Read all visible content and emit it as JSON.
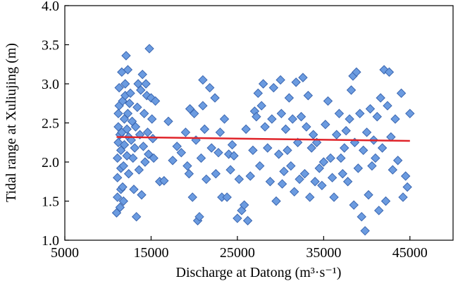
{
  "chart_data": {
    "type": "scatter",
    "title": "",
    "xlabel": "Discharge at Datong (m³·s⁻¹)",
    "ylabel": "Tidal range at Xuliujing (m)",
    "xlim": [
      5000,
      50000
    ],
    "ylim": [
      1.0,
      4.0
    ],
    "xticks": [
      5000,
      15000,
      25000,
      35000,
      45000
    ],
    "yticks": [
      1.0,
      1.5,
      2.0,
      2.5,
      3.0,
      3.5,
      4.0
    ],
    "xtick_labels": [
      "5000",
      "15000",
      "25000",
      "35000",
      "45000"
    ],
    "ytick_labels": [
      "1.0",
      "1.5",
      "2.0",
      "2.5",
      "3.0",
      "3.5",
      "4.0"
    ],
    "grid": false,
    "legend": "none",
    "colors": {
      "marker_fill": "#6b9be0",
      "marker_edge": "#3a66b0",
      "trend": "#e0242a"
    },
    "series": [
      {
        "marker": "diamond",
        "points": [
          [
            11000,
            1.35
          ],
          [
            11100,
            1.55
          ],
          [
            11100,
            1.8
          ],
          [
            11100,
            2.05
          ],
          [
            11200,
            2.25
          ],
          [
            11200,
            2.45
          ],
          [
            11200,
            2.62
          ],
          [
            11300,
            2.72
          ],
          [
            11300,
            2.95
          ],
          [
            11400,
            2.35
          ],
          [
            11400,
            1.42
          ],
          [
            11500,
            1.65
          ],
          [
            11500,
            1.92
          ],
          [
            11500,
            2.15
          ],
          [
            11600,
            2.38
          ],
          [
            11600,
            3.15
          ],
          [
            11700,
            1.68
          ],
          [
            11700,
            2.78
          ],
          [
            11800,
            1.5
          ],
          [
            11800,
            1.95
          ],
          [
            11900,
            2.22
          ],
          [
            11900,
            2.55
          ],
          [
            12000,
            2.85
          ],
          [
            12000,
            3.0
          ],
          [
            12100,
            3.36
          ],
          [
            12200,
            2.42
          ],
          [
            12200,
            2.08
          ],
          [
            12300,
            2.62
          ],
          [
            12300,
            3.18
          ],
          [
            12400,
            1.85
          ],
          [
            12400,
            2.32
          ],
          [
            12500,
            2.75
          ],
          [
            12600,
            2.88
          ],
          [
            12700,
            2.28
          ],
          [
            12800,
            2.52
          ],
          [
            12900,
            2.05
          ],
          [
            13000,
            1.65
          ],
          [
            13100,
            2.18
          ],
          [
            13200,
            2.45
          ],
          [
            13300,
            1.3
          ],
          [
            13400,
            2.7
          ],
          [
            13500,
            3.0
          ],
          [
            13600,
            1.9
          ],
          [
            13700,
            2.35
          ],
          [
            13800,
            2.92
          ],
          [
            13900,
            1.58
          ],
          [
            14000,
            3.12
          ],
          [
            14100,
            2.2
          ],
          [
            14200,
            2.62
          ],
          [
            14300,
            2.0
          ],
          [
            14400,
            3.0
          ],
          [
            14500,
            2.85
          ],
          [
            14600,
            2.38
          ],
          [
            14700,
            2.1
          ],
          [
            14800,
            3.45
          ],
          [
            15000,
            2.82
          ],
          [
            15100,
            2.55
          ],
          [
            15200,
            2.3
          ],
          [
            15300,
            2.05
          ],
          [
            15500,
            2.78
          ],
          [
            16000,
            1.75
          ],
          [
            16500,
            1.76
          ],
          [
            17000,
            2.52
          ],
          [
            17500,
            2.02
          ],
          [
            18000,
            2.2
          ],
          [
            18500,
            2.12
          ],
          [
            19000,
            2.38
          ],
          [
            19200,
            1.95
          ],
          [
            19400,
            1.85
          ],
          [
            19500,
            2.68
          ],
          [
            19800,
            1.55
          ],
          [
            20000,
            2.62
          ],
          [
            20200,
            2.28
          ],
          [
            20400,
            1.25
          ],
          [
            20600,
            1.3
          ],
          [
            20800,
            2.05
          ],
          [
            21000,
            2.72
          ],
          [
            21000,
            3.05
          ],
          [
            21200,
            2.42
          ],
          [
            21400,
            1.78
          ],
          [
            21800,
            2.95
          ],
          [
            22000,
            2.18
          ],
          [
            22400,
            2.82
          ],
          [
            22500,
            1.85
          ],
          [
            22800,
            2.12
          ],
          [
            23000,
            2.38
          ],
          [
            23200,
            1.55
          ],
          [
            23500,
            2.55
          ],
          [
            23800,
            1.55
          ],
          [
            24000,
            2.1
          ],
          [
            24200,
            1.9
          ],
          [
            24400,
            2.22
          ],
          [
            24600,
            2.08
          ],
          [
            25000,
            1.28
          ],
          [
            25200,
            1.78
          ],
          [
            25500,
            1.38
          ],
          [
            25800,
            1.45
          ],
          [
            26000,
            2.42
          ],
          [
            26200,
            1.25
          ],
          [
            26500,
            1.82
          ],
          [
            26800,
            2.15
          ],
          [
            27000,
            2.65
          ],
          [
            27200,
            2.58
          ],
          [
            27400,
            2.88
          ],
          [
            27600,
            1.95
          ],
          [
            27800,
            2.72
          ],
          [
            28000,
            3.0
          ],
          [
            28200,
            2.45
          ],
          [
            28500,
            2.18
          ],
          [
            28800,
            1.75
          ],
          [
            29000,
            2.55
          ],
          [
            29200,
            2.95
          ],
          [
            29500,
            1.5
          ],
          [
            29800,
            2.1
          ],
          [
            30000,
            3.05
          ],
          [
            30100,
            2.62
          ],
          [
            30200,
            1.72
          ],
          [
            30400,
            1.88
          ],
          [
            30600,
            2.42
          ],
          [
            30800,
            2.15
          ],
          [
            31000,
            2.82
          ],
          [
            31200,
            1.95
          ],
          [
            31400,
            2.55
          ],
          [
            31600,
            1.62
          ],
          [
            31800,
            3.02
          ],
          [
            32000,
            2.25
          ],
          [
            32200,
            1.78
          ],
          [
            32400,
            2.58
          ],
          [
            32600,
            3.08
          ],
          [
            32800,
            1.85
          ],
          [
            33000,
            2.45
          ],
          [
            33200,
            2.85
          ],
          [
            33400,
            1.55
          ],
          [
            33600,
            2.18
          ],
          [
            33800,
            2.35
          ],
          [
            34000,
            1.75
          ],
          [
            34200,
            2.25
          ],
          [
            34500,
            1.92
          ],
          [
            34800,
            1.7
          ],
          [
            35000,
            2.0
          ],
          [
            35200,
            2.48
          ],
          [
            35500,
            2.78
          ],
          [
            35800,
            2.05
          ],
          [
            36000,
            1.8
          ],
          [
            36200,
            1.55
          ],
          [
            36500,
            2.35
          ],
          [
            36800,
            2.62
          ],
          [
            37000,
            2.05
          ],
          [
            37200,
            1.85
          ],
          [
            37400,
            2.18
          ],
          [
            37600,
            2.4
          ],
          [
            37800,
            1.75
          ],
          [
            38000,
            2.55
          ],
          [
            38200,
            2.92
          ],
          [
            38400,
            3.1
          ],
          [
            38500,
            1.45
          ],
          [
            38600,
            2.25
          ],
          [
            38800,
            3.15
          ],
          [
            39000,
            1.92
          ],
          [
            39200,
            2.62
          ],
          [
            39400,
            1.3
          ],
          [
            39600,
            2.15
          ],
          [
            39800,
            1.12
          ],
          [
            40000,
            2.38
          ],
          [
            40200,
            1.58
          ],
          [
            40400,
            2.68
          ],
          [
            40600,
            1.95
          ],
          [
            40800,
            2.28
          ],
          [
            41000,
            2.05
          ],
          [
            41200,
            2.58
          ],
          [
            41400,
            1.38
          ],
          [
            41600,
            2.82
          ],
          [
            41800,
            2.18
          ],
          [
            42000,
            3.18
          ],
          [
            42200,
            1.5
          ],
          [
            42400,
            2.72
          ],
          [
            42600,
            3.15
          ],
          [
            42800,
            2.32
          ],
          [
            43000,
            1.9
          ],
          [
            43300,
            2.55
          ],
          [
            43600,
            2.02
          ],
          [
            44000,
            2.88
          ],
          [
            44200,
            1.55
          ],
          [
            44500,
            1.82
          ],
          [
            44700,
            1.68
          ],
          [
            45000,
            2.62
          ]
        ]
      }
    ],
    "trendline": {
      "x": [
        11000,
        45000
      ],
      "y": [
        2.32,
        2.27
      ]
    }
  }
}
